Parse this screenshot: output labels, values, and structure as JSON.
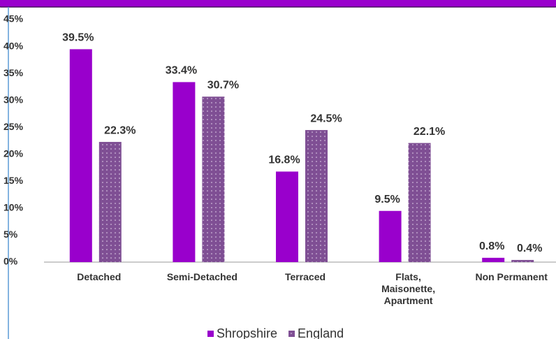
{
  "chart_data": {
    "type": "bar",
    "categories": [
      "Detached",
      "Semi-Detached",
      "Terraced",
      "Flats, Maisonette, Apartment",
      "Non Permanent"
    ],
    "series": [
      {
        "name": "Shropshire",
        "color": "#9900cc",
        "values": [
          39.5,
          33.4,
          16.8,
          9.5,
          0.8
        ],
        "value_labels": [
          "39.5%",
          "33.4%",
          "16.8%",
          "9.5%",
          "0.8%"
        ]
      },
      {
        "name": "England",
        "color": "#7f4f94",
        "pattern": "dotted",
        "values": [
          22.3,
          30.7,
          24.5,
          22.1,
          0.4
        ],
        "value_labels": [
          "22.3%",
          "30.7%",
          "24.5%",
          "22.1%",
          "0.4%"
        ]
      }
    ],
    "ylim": [
      0,
      45
    ],
    "yticks": [
      {
        "value": 0,
        "label": "0%"
      },
      {
        "value": 5,
        "label": "5%"
      },
      {
        "value": 10,
        "label": "10%"
      },
      {
        "value": 15,
        "label": "15%"
      },
      {
        "value": 20,
        "label": "20%"
      },
      {
        "value": 25,
        "label": "25%"
      },
      {
        "value": 30,
        "label": "30%"
      },
      {
        "value": 35,
        "label": "35%"
      },
      {
        "value": 40,
        "label": "40%"
      },
      {
        "value": 45,
        "label": "45%"
      }
    ],
    "grid": false,
    "legend": "bottom"
  }
}
